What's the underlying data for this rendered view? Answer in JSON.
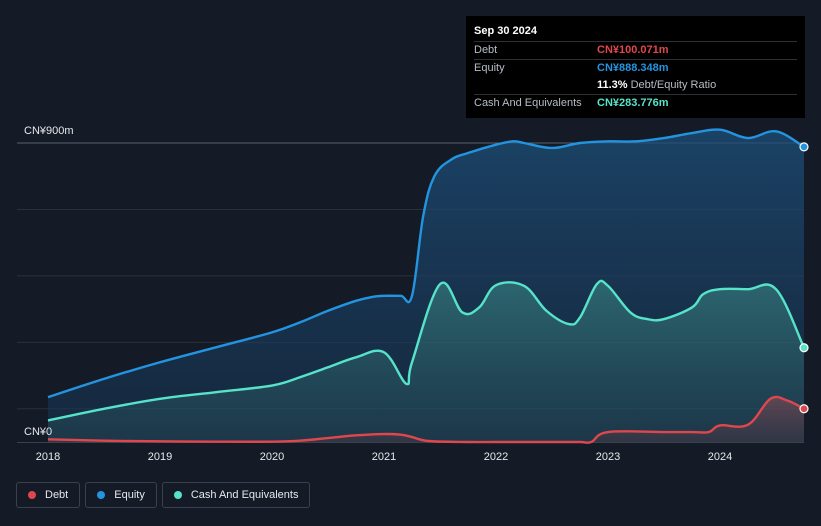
{
  "chart_data": {
    "type": "area",
    "y_axis_labels": [
      "CN¥900m",
      "CN¥0"
    ],
    "ylim": [
      0,
      900
    ],
    "x_ticks": [
      "2018",
      "2019",
      "2020",
      "2021",
      "2022",
      "2023",
      "2024"
    ],
    "x_range": [
      2018.0,
      2024.75
    ],
    "grid": true,
    "legend_position": "bottom-left",
    "series": [
      {
        "name": "Debt",
        "color": "#e0474c",
        "x": [
          2018.0,
          2018.5,
          2019.0,
          2019.5,
          2020.0,
          2020.25,
          2020.5,
          2020.75,
          2021.0,
          2021.15,
          2021.25,
          2021.4,
          2021.75,
          2022.0,
          2022.5,
          2022.75,
          2022.85,
          2023.0,
          2023.5,
          2023.75,
          2023.9,
          2024.0,
          2024.25,
          2024.45,
          2024.6,
          2024.75
        ],
        "values": [
          8,
          4,
          2,
          1,
          1,
          4,
          12,
          20,
          24,
          22,
          15,
          3,
          0,
          0,
          0,
          0,
          0,
          30,
          30,
          30,
          30,
          50,
          52,
          130,
          125,
          100.071
        ]
      },
      {
        "name": "Equity",
        "color": "#2394df",
        "x": [
          2018.0,
          2018.5,
          2019.0,
          2019.5,
          2020.0,
          2020.25,
          2020.5,
          2020.75,
          2020.9,
          2021.0,
          2021.15,
          2021.25,
          2021.35,
          2021.45,
          2021.6,
          2021.75,
          2022.0,
          2022.15,
          2022.25,
          2022.5,
          2022.75,
          2023.0,
          2023.25,
          2023.5,
          2023.75,
          2024.0,
          2024.25,
          2024.5,
          2024.75
        ],
        "values": [
          135,
          190,
          240,
          285,
          330,
          360,
          395,
          425,
          437,
          440,
          440,
          440,
          680,
          800,
          850,
          870,
          895,
          905,
          900,
          885,
          900,
          905,
          905,
          915,
          930,
          940,
          915,
          935,
          888.348
        ]
      },
      {
        "name": "Cash And Equivalents",
        "color": "#56e3c9",
        "x": [
          2018.0,
          2018.5,
          2019.0,
          2019.5,
          2020.0,
          2020.25,
          2020.5,
          2020.75,
          2021.0,
          2021.2,
          2021.25,
          2021.5,
          2021.7,
          2021.85,
          2022.0,
          2022.25,
          2022.45,
          2022.65,
          2022.75,
          2022.9,
          2023.0,
          2023.2,
          2023.35,
          2023.5,
          2023.75,
          2023.85,
          2024.0,
          2024.25,
          2024.5,
          2024.75
        ],
        "values": [
          65,
          100,
          130,
          150,
          170,
          195,
          225,
          255,
          270,
          175,
          240,
          475,
          390,
          405,
          472,
          470,
          395,
          355,
          375,
          475,
          470,
          390,
          370,
          370,
          405,
          445,
          460,
          460,
          460,
          283.776
        ]
      }
    ]
  },
  "tooltip": {
    "date": "Sep 30 2024",
    "rows": [
      {
        "label": "Debt",
        "value": "CN¥100.071m",
        "color": "#e0474c"
      },
      {
        "label": "Equity",
        "value": "CN¥888.348m",
        "color": "#2394df"
      },
      {
        "label": "",
        "value": "11.3%",
        "extra": "Debt/Equity Ratio",
        "color": "#ffffff"
      },
      {
        "label": "Cash And Equivalents",
        "value": "CN¥283.776m",
        "color": "#56e3c9"
      }
    ]
  },
  "legend": [
    {
      "label": "Debt",
      "color": "#e0474c"
    },
    {
      "label": "Equity",
      "color": "#2394df"
    },
    {
      "label": "Cash And Equivalents",
      "color": "#56e3c9"
    }
  ]
}
